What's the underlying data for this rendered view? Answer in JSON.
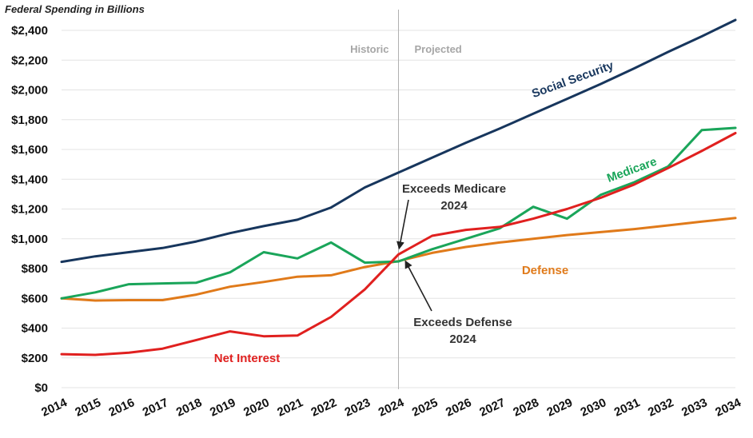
{
  "chart_data": {
    "type": "line",
    "title": "Federal Spending in Billions",
    "x": [
      "2014",
      "2015",
      "2016",
      "2017",
      "2018",
      "2019",
      "2020",
      "2021",
      "2022",
      "2023",
      "2024",
      "2025",
      "2026",
      "2027",
      "2028",
      "2029",
      "2030",
      "2031",
      "2032",
      "2033",
      "2034"
    ],
    "ytick_labels": [
      "$0",
      "$200",
      "$400",
      "$600",
      "$800",
      "$1,000",
      "$1,200",
      "$1,400",
      "$1,600",
      "$1,800",
      "$2,000",
      "$2,200",
      "$2,400"
    ],
    "ylim": [
      0,
      2500
    ],
    "grid": "horizontal",
    "divider_year": "2024",
    "phase_labels": {
      "historic": "Historic",
      "projected": "Projected"
    },
    "series": [
      {
        "name": "Social Security",
        "color": "#17365d",
        "values": [
          845,
          882,
          910,
          938,
          982,
          1038,
          1085,
          1128,
          1210,
          1345,
          1445,
          1545,
          1645,
          1740,
          1840,
          1940,
          2040,
          2145,
          2255,
          2360,
          2470
        ]
      },
      {
        "name": "Medicare",
        "color": "#1aa55a",
        "values": [
          600,
          640,
          695,
          700,
          705,
          775,
          910,
          868,
          975,
          840,
          848,
          930,
          1000,
          1070,
          1215,
          1135,
          1295,
          1380,
          1485,
          1730,
          1745
        ]
      },
      {
        "name": "Net Interest",
        "color": "#e0201f",
        "values": [
          225,
          220,
          235,
          262,
          320,
          378,
          345,
          350,
          475,
          660,
          895,
          1020,
          1060,
          1080,
          1135,
          1200,
          1275,
          1365,
          1475,
          1590,
          1710
        ]
      },
      {
        "name": "Defense",
        "color": "#e07a1a",
        "values": [
          600,
          585,
          588,
          588,
          625,
          678,
          710,
          745,
          755,
          810,
          850,
          905,
          945,
          975,
          1000,
          1025,
          1045,
          1065,
          1090,
          1115,
          1140
        ]
      }
    ],
    "annotations": [
      {
        "lines": [
          "Exceeds Medicare",
          "2024"
        ],
        "target_series": "Net Interest",
        "target_year": "2024"
      },
      {
        "lines": [
          "Exceeds Defense",
          "2024"
        ],
        "target_series": "Net Interest",
        "target_year": "2024"
      }
    ]
  }
}
